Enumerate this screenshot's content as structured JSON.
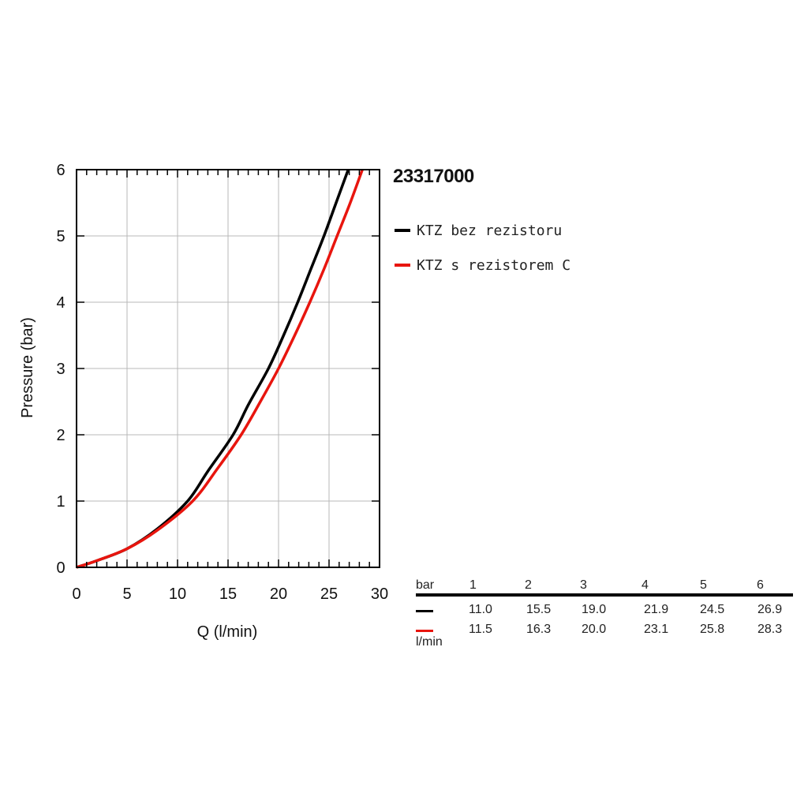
{
  "chart_data": {
    "type": "line",
    "title": "23317000",
    "xlabel": "Q (l/min)",
    "ylabel": "Pressure (bar)",
    "xlim": [
      0,
      30
    ],
    "ylim": [
      0,
      6
    ],
    "xticks": [
      0,
      5,
      10,
      15,
      20,
      25,
      30
    ],
    "yticks": [
      0,
      1,
      2,
      3,
      4,
      5,
      6
    ],
    "grid": true,
    "legend_position": "right",
    "series": [
      {
        "name": "KTZ bez rezistoru",
        "color": "#000000",
        "points": [
          [
            0,
            0
          ],
          [
            2,
            0.1
          ],
          [
            5,
            0.28
          ],
          [
            8,
            0.58
          ],
          [
            11.0,
            1
          ],
          [
            13,
            1.45
          ],
          [
            15.5,
            2
          ],
          [
            17,
            2.45
          ],
          [
            19.0,
            3
          ],
          [
            20.5,
            3.5
          ],
          [
            21.9,
            4
          ],
          [
            23.2,
            4.5
          ],
          [
            24.5,
            5
          ],
          [
            25.7,
            5.5
          ],
          [
            26.9,
            6
          ]
        ]
      },
      {
        "name": "KTZ s rezistorem C",
        "color": "#e8150e",
        "points": [
          [
            0,
            0
          ],
          [
            2,
            0.1
          ],
          [
            5,
            0.28
          ],
          [
            8,
            0.56
          ],
          [
            11.5,
            1
          ],
          [
            14,
            1.5
          ],
          [
            16.3,
            2
          ],
          [
            18.2,
            2.5
          ],
          [
            20.0,
            3
          ],
          [
            21.6,
            3.5
          ],
          [
            23.1,
            4
          ],
          [
            24.5,
            4.5
          ],
          [
            25.8,
            5
          ],
          [
            27.1,
            5.5
          ],
          [
            28.3,
            6
          ]
        ]
      }
    ],
    "table": {
      "header_label": "bar",
      "unit_label": "l/min",
      "pressures": [
        "1",
        "2",
        "3",
        "4",
        "5",
        "6"
      ],
      "rows": [
        {
          "color": "#000000",
          "values": [
            "11.0",
            "15.5",
            "19.0",
            "21.9",
            "24.5",
            "26.9"
          ]
        },
        {
          "color": "#e8150e",
          "values": [
            "11.5",
            "16.3",
            "20.0",
            "23.1",
            "25.8",
            "28.3"
          ]
        }
      ]
    }
  }
}
